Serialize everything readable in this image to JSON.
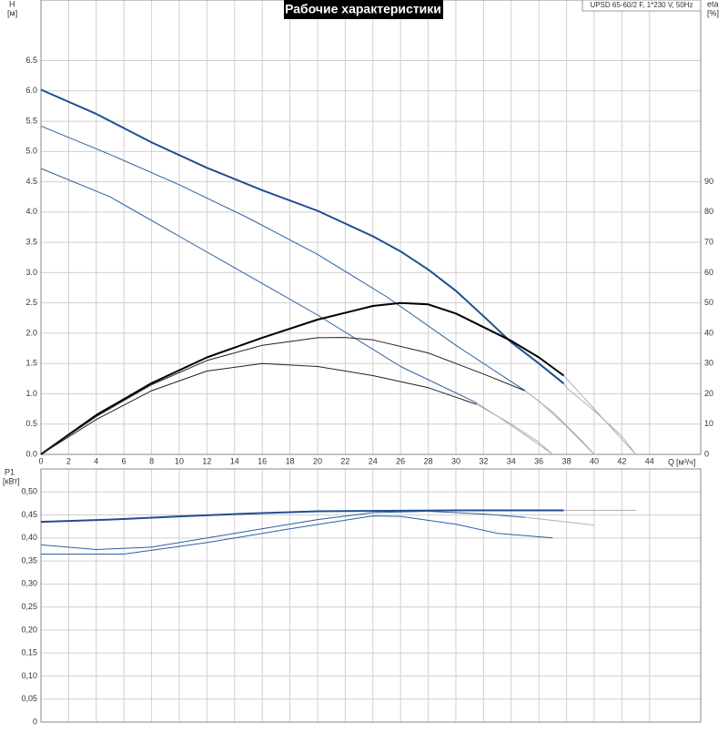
{
  "chart_data": [
    {
      "type": "line",
      "title": "Рабочие характеристики",
      "subtitle": "UPSD 65-60/2 F, 1*230 V, 50Hz",
      "x_label": "Q",
      "x_unit": "[м³/ч]",
      "y_label": "H",
      "y_unit": "[м]",
      "y2_label": "eta",
      "y2_unit": "[%]",
      "xlim": [
        0,
        47.7
      ],
      "xticks": [
        0,
        2,
        4,
        6,
        8,
        10,
        12,
        14,
        16,
        18,
        20,
        22,
        24,
        26,
        28,
        30,
        32,
        34,
        36,
        38,
        40,
        42,
        44
      ],
      "ylim": [
        0,
        7.5
      ],
      "yticks": [
        {
          "value": 0,
          "label": "0.0"
        },
        0.5,
        {
          "value": 1,
          "label": "1.0"
        },
        1.5,
        {
          "value": 2,
          "label": "2.0"
        },
        2.5,
        {
          "value": 3,
          "label": "3.0"
        },
        3.5,
        {
          "value": 4,
          "label": "4.0"
        },
        4.5,
        {
          "value": 5,
          "label": "5.0"
        },
        5.5,
        {
          "value": 6,
          "label": "6.0"
        },
        6.5
      ],
      "y2lim": [
        0,
        150
      ],
      "y2ticks": [
        0,
        10,
        20,
        30,
        40,
        50,
        60,
        70,
        80,
        90
      ],
      "grid": true,
      "series": [
        {
          "color": "#b0b0b0",
          "width": 1,
          "x": [
            37.8,
            38,
            40,
            42,
            43
          ],
          "values": [
            1.17,
            1.1,
            0.72,
            0.3,
            0
          ]
        },
        {
          "color": "#b0b0b0",
          "width": 1,
          "x": [
            35,
            36,
            38,
            40
          ],
          "values": [
            1.05,
            0.88,
            0.46,
            0
          ]
        },
        {
          "color": "#b0b0b0",
          "width": 1,
          "x": [
            31.5,
            33,
            35,
            37
          ],
          "values": [
            0.85,
            0.63,
            0.32,
            0
          ]
        },
        {
          "color": "#1f4f8f",
          "width": 2,
          "x": [
            0,
            4,
            8,
            12,
            16,
            20,
            24,
            26,
            28,
            30,
            32,
            34,
            36,
            37.8
          ],
          "values": [
            6.02,
            5.62,
            5.15,
            4.73,
            4.36,
            4.02,
            3.6,
            3.35,
            3.05,
            2.7,
            2.28,
            1.85,
            1.5,
            1.17
          ]
        },
        {
          "color": "#2d5f9f",
          "width": 1,
          "x": [
            0,
            5,
            10,
            15,
            20,
            25,
            30,
            35
          ],
          "values": [
            5.42,
            4.95,
            4.45,
            3.9,
            3.3,
            2.6,
            1.8,
            1.05
          ]
        },
        {
          "color": "#2d5f9f",
          "width": 1,
          "x": [
            0,
            5,
            10,
            15,
            20,
            26,
            31.5
          ],
          "values": [
            4.72,
            4.25,
            3.6,
            2.95,
            2.3,
            1.45,
            0.85
          ]
        },
        {
          "color": "#b0b0b0",
          "width": 1,
          "axis": "y2",
          "x": [
            37.8,
            40,
            42,
            43
          ],
          "values": [
            26,
            15,
            5,
            0
          ]
        },
        {
          "color": "#b0b0b0",
          "width": 1,
          "axis": "y2",
          "x": [
            35,
            37,
            39,
            40
          ],
          "values": [
            21,
            14,
            5,
            0
          ]
        },
        {
          "color": "#b0b0b0",
          "width": 1,
          "axis": "y2",
          "x": [
            31.5,
            34,
            36,
            37
          ],
          "values": [
            16.5,
            10,
            4,
            0
          ]
        },
        {
          "color": "#000000",
          "width": 2,
          "axis": "y2",
          "x": [
            0,
            4,
            8,
            12,
            16,
            20,
            24,
            26,
            28,
            30,
            32,
            34,
            36,
            37.8
          ],
          "values": [
            0,
            13,
            23.5,
            32,
            38.5,
            44.5,
            49,
            50,
            49.5,
            46.5,
            42,
            37.5,
            32,
            26
          ]
        },
        {
          "color": "#222222",
          "width": 1,
          "axis": "y2",
          "x": [
            0,
            4,
            8,
            12,
            16,
            20,
            22,
            24,
            28,
            32,
            35
          ],
          "values": [
            0,
            12.5,
            23,
            31,
            36,
            38.5,
            38.6,
            37.8,
            33.5,
            26.5,
            21
          ]
        },
        {
          "color": "#222222",
          "width": 1,
          "axis": "y2",
          "x": [
            0,
            4,
            8,
            12,
            16,
            20,
            24,
            28,
            31.5
          ],
          "values": [
            0,
            11.5,
            21,
            27.5,
            30,
            29,
            26,
            22,
            16.5
          ]
        }
      ]
    },
    {
      "type": "line",
      "y_label": "P1",
      "y_unit": "[кВт]",
      "xlim": [
        0,
        47.7
      ],
      "ylim": [
        0,
        0.55
      ],
      "yticks": [
        0,
        {
          "value": 0.05,
          "label": "0,05"
        },
        {
          "value": 0.1,
          "label": "0,10"
        },
        {
          "value": 0.15,
          "label": "0,15"
        },
        {
          "value": 0.2,
          "label": "0,20"
        },
        {
          "value": 0.25,
          "label": "0,25"
        },
        {
          "value": 0.3,
          "label": "0,30"
        },
        {
          "value": 0.35,
          "label": "0,35"
        },
        {
          "value": 0.4,
          "label": "0,40"
        },
        {
          "value": 0.45,
          "label": "0,45"
        },
        {
          "value": 0.5,
          "label": "0,50"
        }
      ],
      "series": [
        {
          "color": "#b0b0b0",
          "width": 1,
          "x": [
            37.8,
            43
          ],
          "values": [
            0.46,
            0.46
          ]
        },
        {
          "color": "#b0b0b0",
          "width": 1,
          "x": [
            35,
            40
          ],
          "values": [
            0.445,
            0.428
          ]
        },
        {
          "color": "#1f4f8f",
          "width": 2,
          "x": [
            0,
            5,
            10,
            15,
            20,
            25,
            30,
            37.8
          ],
          "values": [
            0.435,
            0.44,
            0.447,
            0.453,
            0.458,
            0.459,
            0.46,
            0.46
          ]
        },
        {
          "color": "#2d5f9f",
          "width": 1,
          "x": [
            0,
            4,
            8,
            14,
            20,
            24,
            28,
            32,
            35
          ],
          "values": [
            0.385,
            0.375,
            0.38,
            0.41,
            0.44,
            0.455,
            0.458,
            0.452,
            0.445
          ]
        },
        {
          "color": "#2d5f9f",
          "width": 1,
          "x": [
            0,
            6,
            12,
            18,
            24,
            26,
            30,
            33,
            37
          ],
          "values": [
            0.365,
            0.365,
            0.39,
            0.42,
            0.448,
            0.447,
            0.43,
            0.41,
            0.4
          ]
        }
      ]
    }
  ]
}
